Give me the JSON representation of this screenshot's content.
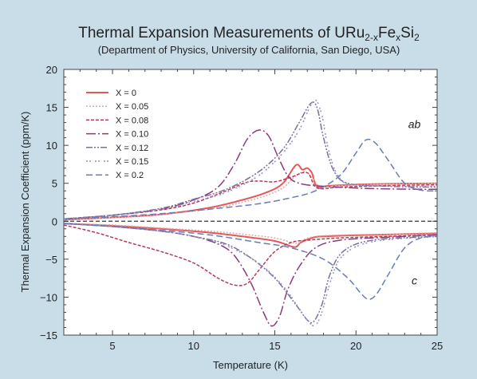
{
  "chart_data": {
    "type": "line",
    "title": "Thermal Expansion Measurements of URu2-xFexSi2",
    "title_parts": {
      "a": "Thermal Expansion Measurements of URu",
      "b": "2-x",
      "c": "Fe",
      "d": "x",
      "e": "Si",
      "f": "2"
    },
    "subtitle": "(Department of Physics, University of California, San Diego, USA)",
    "xlabel": "Temperature (K)",
    "ylabel": "Thermal Expansion Coefficient (ppm/K)",
    "xlim": [
      2,
      25
    ],
    "ylim": [
      -15,
      20
    ],
    "xticks": [
      5,
      10,
      15,
      20,
      25
    ],
    "yticks": [
      -15,
      -10,
      -5,
      0,
      5,
      10,
      15,
      20
    ],
    "ytick_labels": [
      "−15",
      "−10",
      "−5",
      "0",
      "5",
      "10",
      "15",
      "20"
    ],
    "legend_position": "top-left",
    "annotations": [
      {
        "text": "ab",
        "x": 23.6,
        "y": 12.3
      },
      {
        "text": "c",
        "x": 23.6,
        "y": -8.3
      }
    ],
    "series": [
      {
        "name": "X = 0",
        "color": "#e05a5a",
        "dash": "",
        "width": 2,
        "ab": [
          [
            2,
            0.2
          ],
          [
            5,
            0.5
          ],
          [
            8,
            0.9
          ],
          [
            11,
            1.8
          ],
          [
            13,
            2.8
          ],
          [
            14.5,
            3.8
          ],
          [
            15.5,
            5
          ],
          [
            16.3,
            7.4
          ],
          [
            16.7,
            6.8
          ],
          [
            17,
            7
          ],
          [
            17.3,
            6.3
          ],
          [
            17.6,
            4.6
          ],
          [
            18.5,
            4.7
          ],
          [
            21,
            4.9
          ],
          [
            25,
            5
          ]
        ],
        "c": [
          [
            2,
            -0.3
          ],
          [
            5,
            -0.6
          ],
          [
            8,
            -1
          ],
          [
            11,
            -1.5
          ],
          [
            13,
            -2
          ],
          [
            15,
            -2.6
          ],
          [
            16.2,
            -3.4
          ],
          [
            16.6,
            -2.8
          ],
          [
            17.3,
            -2.2
          ],
          [
            18,
            -2
          ],
          [
            21,
            -1.8
          ],
          [
            25,
            -1.6
          ]
        ]
      },
      {
        "name": "X = 0.05",
        "color": "#e9a3a3",
        "dash": "2 2",
        "width": 1.5,
        "ab": [
          [
            2,
            0.2
          ],
          [
            5,
            0.5
          ],
          [
            8,
            0.9
          ],
          [
            11,
            1.6
          ],
          [
            13,
            2.5
          ],
          [
            14.5,
            3.4
          ],
          [
            15.5,
            4.4
          ],
          [
            16.2,
            5.8
          ],
          [
            16.8,
            6.5
          ],
          [
            17.3,
            5.8
          ],
          [
            17.8,
            4.6
          ],
          [
            19,
            4.7
          ],
          [
            22,
            4.9
          ],
          [
            25,
            5
          ]
        ],
        "c": [
          [
            2,
            -0.3
          ],
          [
            5,
            -0.5
          ],
          [
            8,
            -0.9
          ],
          [
            11,
            -1.3
          ],
          [
            13,
            -1.7
          ],
          [
            15,
            -2.2
          ],
          [
            16.3,
            -2.9
          ],
          [
            16.8,
            -2.4
          ],
          [
            17.5,
            -2
          ],
          [
            19,
            -1.8
          ],
          [
            22,
            -1.7
          ],
          [
            25,
            -1.5
          ]
        ]
      },
      {
        "name": "X = 0.08",
        "color": "#b33a55",
        "dash": "4 2",
        "width": 1.5,
        "ab": [
          [
            2,
            0.3
          ],
          [
            5,
            0.8
          ],
          [
            8,
            1.5
          ],
          [
            10,
            2.4
          ],
          [
            12,
            4
          ],
          [
            13.2,
            5.1
          ],
          [
            14,
            5.3
          ],
          [
            15,
            5.2
          ],
          [
            16,
            5.8
          ],
          [
            17,
            6.4
          ],
          [
            17.6,
            4.4
          ],
          [
            19,
            4.5
          ],
          [
            22,
            4.7
          ],
          [
            25,
            4.8
          ]
        ],
        "c": [
          [
            2,
            -0.5
          ],
          [
            4,
            -1.5
          ],
          [
            6,
            -2.8
          ],
          [
            8,
            -4
          ],
          [
            10,
            -5.5
          ],
          [
            11.5,
            -7.5
          ],
          [
            12.5,
            -8.4
          ],
          [
            13.3,
            -8.2
          ],
          [
            14,
            -6.5
          ],
          [
            15,
            -4
          ],
          [
            16,
            -2.8
          ],
          [
            17,
            -2.5
          ],
          [
            19,
            -2.2
          ],
          [
            22,
            -2
          ],
          [
            25,
            -1.8
          ]
        ]
      },
      {
        "name": "X = 0.10",
        "color": "#8a3a7a",
        "dash": "12 3 2 3",
        "width": 1.5,
        "ab": [
          [
            2,
            0.3
          ],
          [
            5,
            0.8
          ],
          [
            8,
            1.6
          ],
          [
            10,
            2.8
          ],
          [
            11.5,
            4.5
          ],
          [
            12.5,
            7.5
          ],
          [
            13.3,
            10.8
          ],
          [
            14,
            12
          ],
          [
            14.6,
            11.3
          ],
          [
            15.2,
            8.5
          ],
          [
            15.8,
            6
          ],
          [
            16.5,
            5
          ],
          [
            18,
            4.6
          ],
          [
            21,
            4.3
          ],
          [
            25,
            4.2
          ]
        ],
        "c": [
          [
            2,
            -0.3
          ],
          [
            5,
            -0.7
          ],
          [
            8,
            -1.3
          ],
          [
            10,
            -2
          ],
          [
            11.5,
            -3
          ],
          [
            12.5,
            -4.5
          ],
          [
            13.5,
            -8
          ],
          [
            14.3,
            -12
          ],
          [
            14.8,
            -13.8
          ],
          [
            15.3,
            -12.5
          ],
          [
            15.8,
            -9
          ],
          [
            16.5,
            -6
          ],
          [
            17.5,
            -3.5
          ],
          [
            19,
            -2.5
          ],
          [
            22,
            -2.1
          ],
          [
            25,
            -1.8
          ]
        ]
      },
      {
        "name": "X = 0.12",
        "color": "#7d6e9e",
        "dash": "8 2 2 2 2 2",
        "width": 1.5,
        "ab": [
          [
            2,
            0.3
          ],
          [
            5,
            0.8
          ],
          [
            8,
            1.7
          ],
          [
            10,
            2.9
          ],
          [
            12,
            4.2
          ],
          [
            14,
            6.5
          ],
          [
            15.5,
            9.5
          ],
          [
            16.5,
            13
          ],
          [
            17.2,
            15.5
          ],
          [
            17.6,
            15
          ],
          [
            18,
            11
          ],
          [
            18.6,
            6.8
          ],
          [
            19.5,
            5
          ],
          [
            22,
            4.6
          ],
          [
            25,
            4.5
          ]
        ],
        "c": [
          [
            2,
            -0.3
          ],
          [
            5,
            -0.7
          ],
          [
            8,
            -1.3
          ],
          [
            10,
            -2
          ],
          [
            12,
            -3
          ],
          [
            13.5,
            -4.8
          ],
          [
            15,
            -7.5
          ],
          [
            16.3,
            -11
          ],
          [
            17,
            -13
          ],
          [
            17.4,
            -13.2
          ],
          [
            17.9,
            -11
          ],
          [
            18.4,
            -7
          ],
          [
            19.2,
            -4
          ],
          [
            21,
            -2.5
          ],
          [
            25,
            -2
          ]
        ]
      },
      {
        "name": "X = 0.15",
        "color": "#8f92c4",
        "dash": "2 2 2 5",
        "width": 1.5,
        "ab": [
          [
            2,
            0.3
          ],
          [
            5,
            0.8
          ],
          [
            8,
            1.6
          ],
          [
            10,
            2.6
          ],
          [
            12,
            3.8
          ],
          [
            14,
            6
          ],
          [
            15.5,
            9
          ],
          [
            16.5,
            12
          ],
          [
            17.1,
            14.8
          ],
          [
            17.5,
            16
          ],
          [
            17.9,
            14
          ],
          [
            18.3,
            9.5
          ],
          [
            18.9,
            6
          ],
          [
            20,
            4.8
          ],
          [
            25,
            4.6
          ]
        ],
        "c": [
          [
            2,
            -0.3
          ],
          [
            5,
            -0.7
          ],
          [
            8,
            -1.3
          ],
          [
            10,
            -2
          ],
          [
            12,
            -3.2
          ],
          [
            14,
            -5.5
          ],
          [
            15.5,
            -8.5
          ],
          [
            16.5,
            -11.5
          ],
          [
            17.1,
            -13.3
          ],
          [
            17.5,
            -13.7
          ],
          [
            17.9,
            -12
          ],
          [
            18.5,
            -7.5
          ],
          [
            19.2,
            -4.5
          ],
          [
            21,
            -2.7
          ],
          [
            25,
            -2
          ]
        ]
      },
      {
        "name": "X = 0.2",
        "color": "#6a7cb8",
        "dash": "8 4",
        "width": 1.5,
        "ab": [
          [
            2,
            0.3
          ],
          [
            5,
            0.6
          ],
          [
            8,
            1
          ],
          [
            11,
            1.6
          ],
          [
            14,
            2.3
          ],
          [
            16,
            3.1
          ],
          [
            17.5,
            4
          ],
          [
            19,
            6
          ],
          [
            20,
            9
          ],
          [
            20.6,
            10.7
          ],
          [
            21.2,
            10.3
          ],
          [
            22,
            8
          ],
          [
            23,
            5
          ],
          [
            24,
            4.1
          ],
          [
            25,
            4
          ]
        ],
        "c": [
          [
            2,
            -0.3
          ],
          [
            5,
            -0.7
          ],
          [
            8,
            -1.2
          ],
          [
            11,
            -1.8
          ],
          [
            14,
            -2.8
          ],
          [
            16,
            -3.5
          ],
          [
            18,
            -5
          ],
          [
            19.5,
            -7.5
          ],
          [
            20.3,
            -9.5
          ],
          [
            20.8,
            -10.3
          ],
          [
            21.3,
            -9.5
          ],
          [
            22,
            -7
          ],
          [
            23,
            -3.5
          ],
          [
            24,
            -2.2
          ],
          [
            25,
            -2
          ]
        ]
      }
    ]
  }
}
